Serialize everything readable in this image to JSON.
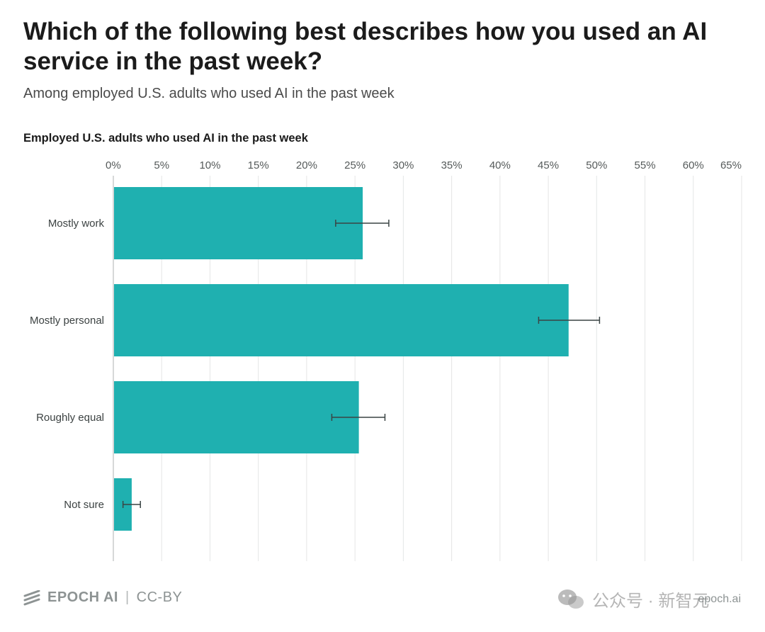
{
  "title": "Which of the following best describes how you used an AI service in the past week?",
  "subtitle": "Among employed U.S. adults who used AI in the past week",
  "panel_label": "Employed U.S. adults who used AI in the past week",
  "footer": {
    "brand": "EPOCH AI",
    "separator": "|",
    "license": "CC-BY",
    "site": "epoch.ai"
  },
  "watermark": {
    "text": "公众号 · 新智元",
    "icon": "wechat-icon"
  },
  "colors": {
    "bar": "#1fb0b0",
    "error_bar": "#3a4444",
    "grid": "#e4e6e6",
    "axis": "#c9cccc",
    "logo": "#8d9393"
  },
  "chart_data": {
    "type": "bar",
    "orientation": "horizontal",
    "categories": [
      "Mostly work",
      "Mostly personal",
      "Roughly equal",
      "Not sure"
    ],
    "values": [
      25.8,
      47.1,
      25.4,
      1.9
    ],
    "error_low": [
      23.0,
      44.0,
      22.6,
      1.0
    ],
    "error_high": [
      28.5,
      50.3,
      28.1,
      2.8
    ],
    "xlim": [
      0,
      65
    ],
    "xticks": [
      0,
      5,
      10,
      15,
      20,
      25,
      30,
      35,
      40,
      45,
      50,
      55,
      60,
      65
    ],
    "tick_suffix": "%",
    "grid": true,
    "xaxis_position": "top"
  }
}
